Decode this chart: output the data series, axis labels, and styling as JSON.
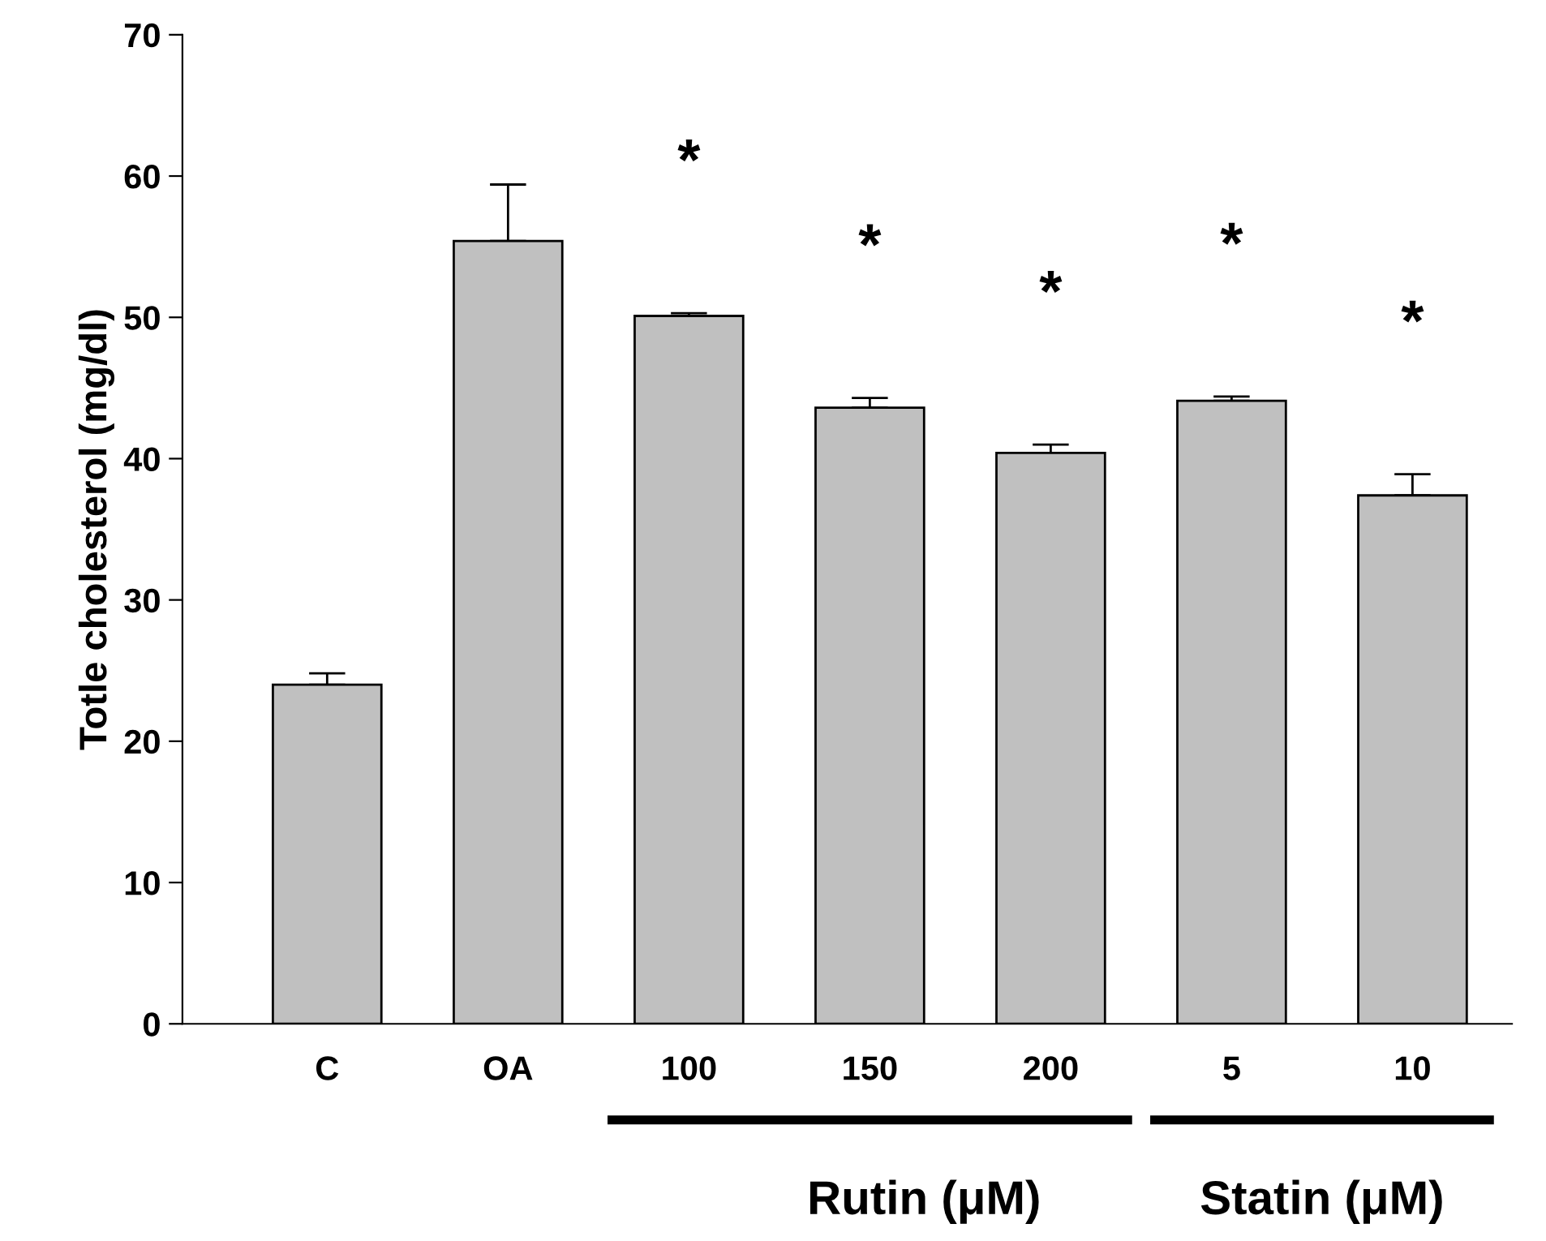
{
  "chart_data": {
    "type": "bar",
    "ylabel": "Totle cholesterol (mg/dl)",
    "categories": [
      "C",
      "OA",
      "100",
      "150",
      "200",
      "5",
      "10"
    ],
    "values": [
      24.0,
      55.4,
      50.1,
      43.6,
      40.4,
      44.1,
      37.4
    ],
    "errors": [
      [
        24.0,
        24.8
      ],
      [
        55.4,
        59.4
      ],
      [
        50.1,
        50.3
      ],
      [
        43.6,
        44.3
      ],
      [
        40.4,
        41.0
      ],
      [
        44.1,
        44.4
      ],
      [
        37.4,
        38.9
      ]
    ],
    "color": "#c0c0c0",
    "ylim": [
      0,
      70
    ],
    "yticks": [
      0,
      10,
      20,
      30,
      40,
      50,
      60,
      70
    ],
    "grid": false,
    "legend": false,
    "annotations": [
      "*",
      "*",
      "*",
      "*",
      "*",
      "Rutin (μM)",
      "Statin (μM)"
    ]
  }
}
